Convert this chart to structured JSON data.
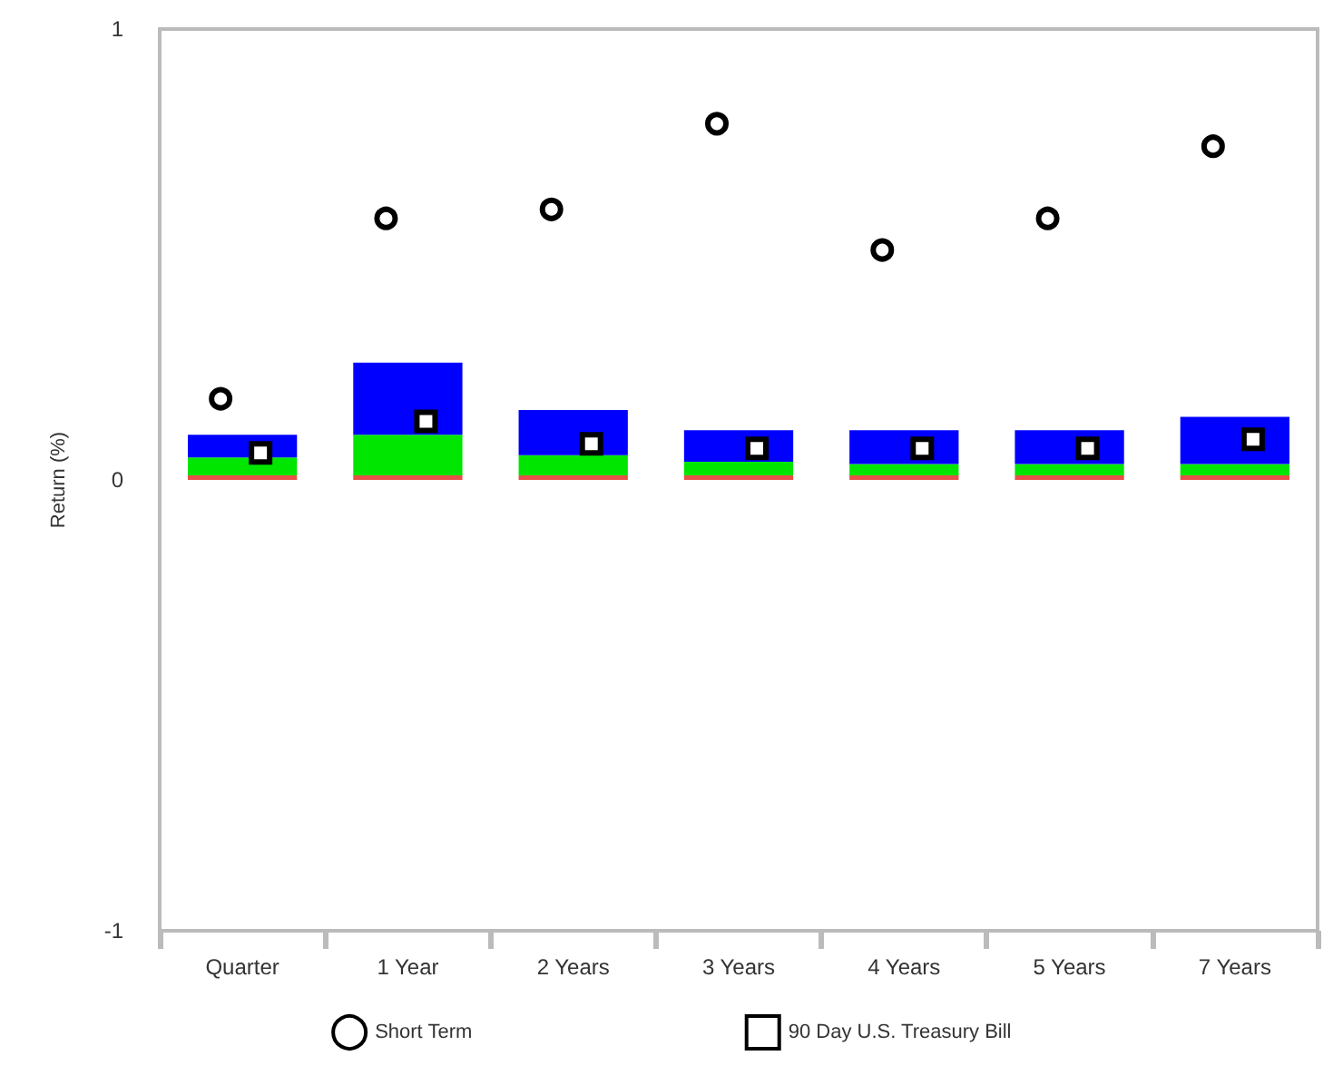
{
  "chart_data": {
    "type": "bar",
    "ylabel": "Return (%)",
    "categories": [
      "Quarter",
      "1 Year",
      "2 Years",
      "3 Years",
      "4 Years",
      "5 Years",
      "7 Years"
    ],
    "stacked": true,
    "series": [
      {
        "color": "#e8504a",
        "values": [
          0.01,
          0.01,
          0.01,
          0.01,
          0.01,
          0.01,
          0.01
        ]
      },
      {
        "color": "#00e600",
        "values": [
          0.04,
          0.09,
          0.045,
          0.03,
          0.025,
          0.025,
          0.025
        ]
      },
      {
        "color": "#0000ff",
        "values": [
          0.05,
          0.16,
          0.1,
          0.07,
          0.075,
          0.075,
          0.105
        ]
      },
      {
        "type": "scatter",
        "name": "Short Term",
        "marker": "circle",
        "color": "#000000",
        "x": [
          "Quarter",
          "1 Year",
          "2 Years",
          "3 Years",
          "4 Years",
          "5 Years",
          "7 Years"
        ],
        "values": [
          0.18,
          0.58,
          0.6,
          0.79,
          0.51,
          0.58,
          0.74
        ]
      },
      {
        "type": "scatter",
        "name": "90 Day U.S. Treasury Bill",
        "marker": "square",
        "color": "#000000",
        "x": [
          "Quarter",
          "1 Year",
          "2 Years",
          "3 Years",
          "4 Years",
          "5 Years",
          "7 Years"
        ],
        "values": [
          0.06,
          0.13,
          0.08,
          0.07,
          0.07,
          0.07,
          0.09
        ]
      }
    ],
    "ylim": [
      -1,
      1
    ],
    "yticks": [
      -1,
      0,
      1
    ],
    "grid": false,
    "legend": "bottom"
  }
}
